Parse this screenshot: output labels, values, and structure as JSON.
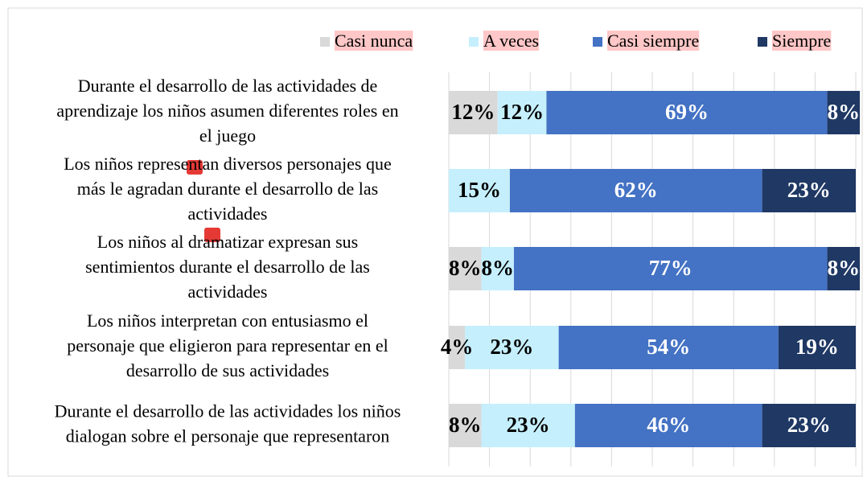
{
  "chart_data": {
    "type": "stacked_bar_horizontal",
    "categories": [
      [
        "Durante el desarrollo de las actividades de",
        "aprendizaje los niños asumen diferentes roles en",
        "el juego"
      ],
      [
        "Los niños representan diversos personajes que",
        "más le agradan durante el desarrollo de las",
        "actividades"
      ],
      [
        "Los niños al dramatizar expresan sus",
        "sentimientos durante el desarrollo de las",
        "actividades"
      ],
      [
        "Los niños interpretan con entusiasmo el",
        "personaje que eligieron para representar en el",
        "desarrollo de   sus actividades"
      ],
      [
        "Durante el desarrollo de las actividades los niños",
        "dialogan sobre el personaje que representaron"
      ]
    ],
    "series": [
      {
        "name": "Casi nunca",
        "color": "#d9d9d9",
        "label_color": "#000000",
        "values": [
          12,
          0,
          8,
          4,
          8
        ],
        "value_labels": [
          "12%",
          null,
          "8%",
          "4%",
          "8%"
        ]
      },
      {
        "name": "A veces",
        "color": "#c5effd",
        "label_color": "#000000",
        "values": [
          12,
          15,
          8,
          23,
          23
        ],
        "value_labels": [
          "12%",
          "15%",
          "8%",
          "23%",
          "23%"
        ]
      },
      {
        "name": "Casi siempre",
        "color": "#4472c4",
        "label_color": "#ffffff",
        "values": [
          69,
          62,
          77,
          54,
          46
        ],
        "value_labels": [
          "69%",
          "62%",
          "77%",
          "54%",
          "46%"
        ]
      },
      {
        "name": "Siempre",
        "color": "#1f3864",
        "label_color": "#ffffff",
        "values": [
          8,
          23,
          8,
          19,
          23
        ],
        "value_labels": [
          "8%",
          "23%",
          "8%",
          "19%",
          "23%"
        ]
      }
    ],
    "xlim": [
      0,
      100
    ],
    "xticks": [
      0,
      10,
      20,
      30,
      40,
      50,
      60,
      70,
      80,
      90,
      100
    ],
    "grid": true,
    "legend": "top"
  }
}
